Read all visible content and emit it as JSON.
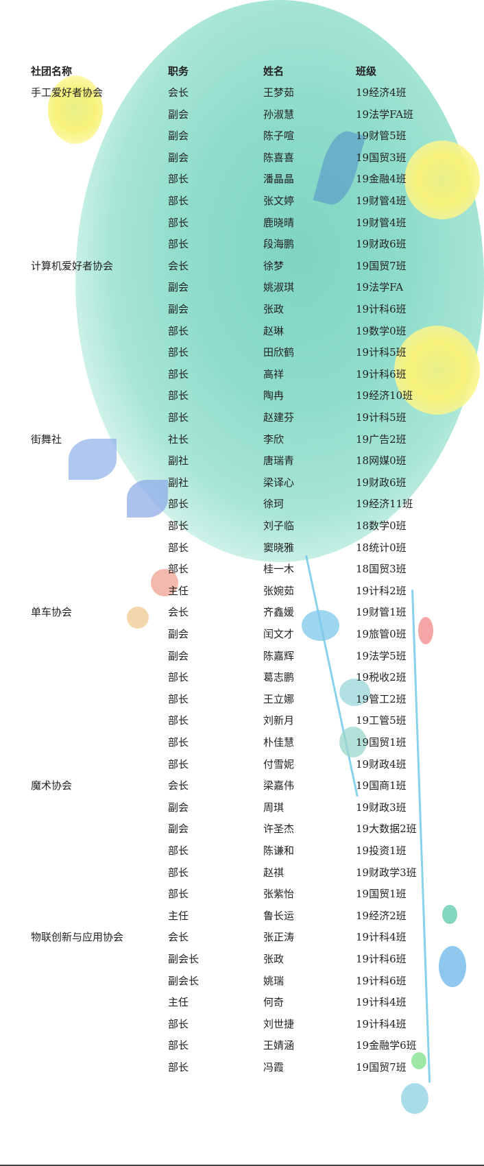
{
  "header": {
    "club": "社团名称",
    "role": "职务",
    "name": "姓名",
    "class": "班级"
  },
  "rows": [
    {
      "club": "手工爱好者协会",
      "role": "会长",
      "name": "王梦茹",
      "class": "19经济4班"
    },
    {
      "club": "",
      "role": "副会",
      "name": "孙淑慧",
      "class": "19法学FA班"
    },
    {
      "club": "",
      "role": "副会",
      "name": "陈子喧",
      "class": "19财管5班"
    },
    {
      "club": "",
      "role": "副会",
      "name": "陈喜喜",
      "class": "19国贸3班"
    },
    {
      "club": "",
      "role": "部长",
      "name": "潘晶晶",
      "class": "19金融4班"
    },
    {
      "club": "",
      "role": "部长",
      "name": "张文婷",
      "class": "19财管4班"
    },
    {
      "club": "",
      "role": "部长",
      "name": "鹿晓晴",
      "class": "19财管4班"
    },
    {
      "club": "",
      "role": "部长",
      "name": "段海鹏",
      "class": "19财政6班"
    },
    {
      "club": "计算机爱好者协会",
      "role": "会长",
      "name": "徐梦",
      "class": "19国贸7班"
    },
    {
      "club": "",
      "role": "副会",
      "name": "姚淑琪",
      "class": "19法学FA"
    },
    {
      "club": "",
      "role": "副会",
      "name": "张政",
      "class": "19计科6班"
    },
    {
      "club": "",
      "role": "部长",
      "name": "赵琳",
      "class": "19数学0班"
    },
    {
      "club": "",
      "role": "部长",
      "name": "田欣鹤",
      "class": "19计科5班"
    },
    {
      "club": "",
      "role": "部长",
      "name": "高祥",
      "class": "19计科6班"
    },
    {
      "club": "",
      "role": "部长",
      "name": "陶冉",
      "class": "19经济10班"
    },
    {
      "club": "",
      "role": "部长",
      "name": "赵建芬",
      "class": "19计科5班"
    },
    {
      "club": "街舞社",
      "role": "社长",
      "name": "李欣",
      "class": "19广告2班"
    },
    {
      "club": "",
      "role": "副社",
      "name": "唐瑞青",
      "class": "18网媒0班"
    },
    {
      "club": "",
      "role": "副社",
      "name": "梁译心",
      "class": "19财政6班"
    },
    {
      "club": "",
      "role": "部长",
      "name": "徐珂",
      "class": "19经济11班"
    },
    {
      "club": "",
      "role": "部长",
      "name": "刘子临",
      "class": "18数学0班"
    },
    {
      "club": "",
      "role": "部长",
      "name": "窦晓雅",
      "class": "18统计0班"
    },
    {
      "club": "",
      "role": "部长",
      "name": "桂一木",
      "class": "18国贸3班"
    },
    {
      "club": "",
      "role": "主任",
      "name": "张婉茹",
      "class": "19计科2班"
    },
    {
      "club": "单车协会",
      "role": "会长",
      "name": "齐鑫媛",
      "class": "19财管1班"
    },
    {
      "club": "",
      "role": "副会",
      "name": "闰文才",
      "class": "19旅管0班"
    },
    {
      "club": "",
      "role": "副会",
      "name": "陈嘉辉",
      "class": "19法学5班"
    },
    {
      "club": "",
      "role": "部长",
      "name": "葛志鹏",
      "class": "19税收2班"
    },
    {
      "club": "",
      "role": "部长",
      "name": "王立娜",
      "class": "19管工2班"
    },
    {
      "club": "",
      "role": "部长",
      "name": "刘新月",
      "class": "19工管5班"
    },
    {
      "club": "",
      "role": "部长",
      "name": "朴佳慧",
      "class": "19国贸1班"
    },
    {
      "club": "",
      "role": "部长",
      "name": "付雪妮",
      "class": "19财政4班"
    },
    {
      "club": "魔术协会",
      "role": "会长",
      "name": "梁嘉伟",
      "class": "19国商1班"
    },
    {
      "club": "",
      "role": "副会",
      "name": "周琪",
      "class": "19财政3班"
    },
    {
      "club": "",
      "role": "副会",
      "name": "许圣杰",
      "class": "19大数据2班"
    },
    {
      "club": "",
      "role": "部长",
      "name": "陈谦和",
      "class": "19投资1班"
    },
    {
      "club": "",
      "role": "部长",
      "name": "赵祺",
      "class": "19财政学3班"
    },
    {
      "club": "",
      "role": "部长",
      "name": "张紫怡",
      "class": "19国贸1班"
    },
    {
      "club": "",
      "role": "主任",
      "name": "鲁长运",
      "class": "19经济2班"
    },
    {
      "club": "物联创新与应用协会",
      "role": "会长",
      "name": "张正涛",
      "class": "19计科4班"
    },
    {
      "club": "",
      "role": "副会长",
      "name": "张政",
      "class": "19计科6班"
    },
    {
      "club": "",
      "role": "副会长",
      "name": "姚瑞",
      "class": "19计科6班"
    },
    {
      "club": "",
      "role": "主任",
      "name": "何奇",
      "class": "19计科4班"
    },
    {
      "club": "",
      "role": "部长",
      "name": "刘世捷",
      "class": "19计科4班"
    },
    {
      "club": "",
      "role": "部长",
      "name": "王婧涵",
      "class": "19金融学6班"
    },
    {
      "club": "",
      "role": "部长",
      "name": "冯霞",
      "class": "19国贸7班"
    }
  ],
  "colors": {
    "wash": "#8fdccb",
    "flower": "#f6f27a",
    "vine": "#6cc7e6"
  }
}
